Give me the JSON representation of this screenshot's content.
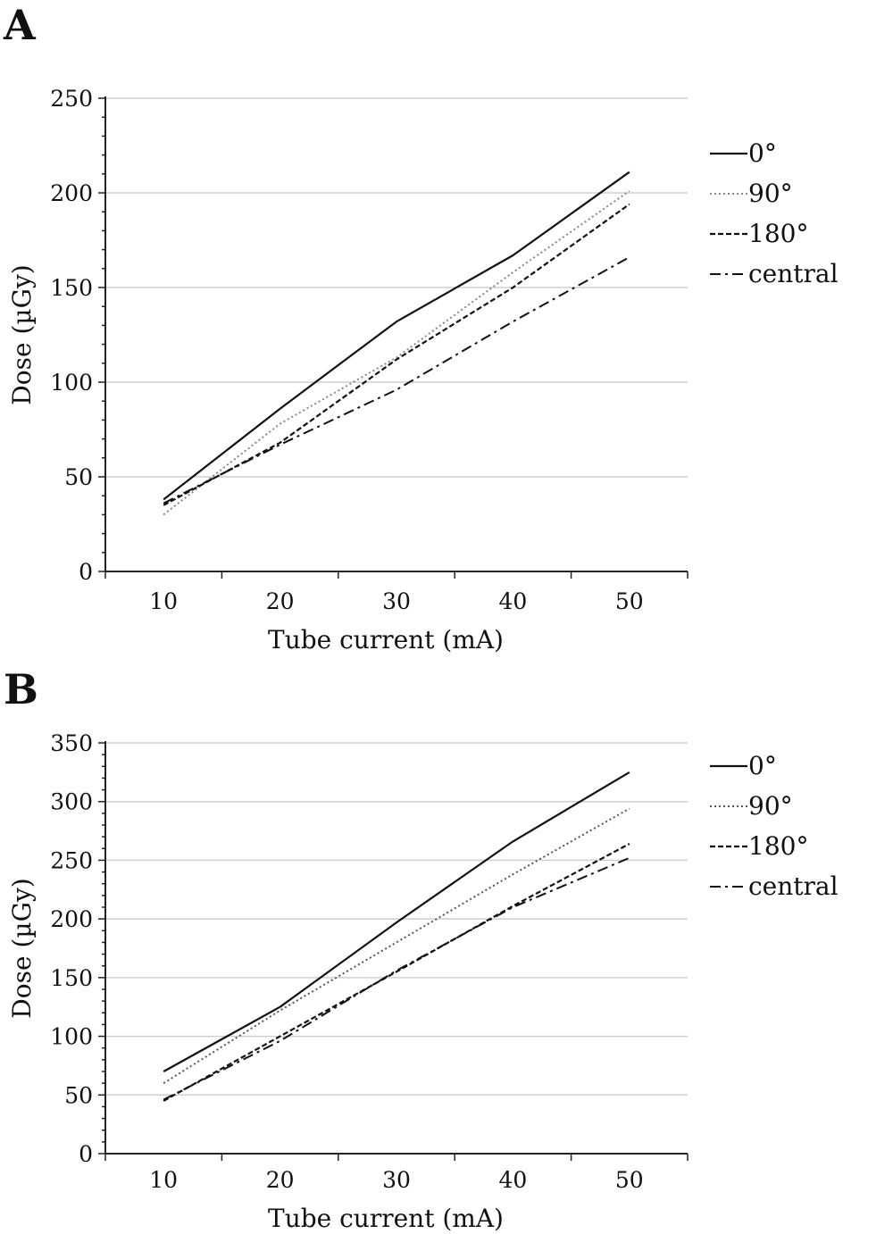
{
  "chart_data": [
    {
      "panel": "A",
      "type": "line",
      "title": "",
      "xlabel": "Tube current (mA)",
      "ylabel": "Dose (µGy)",
      "x": [
        10,
        20,
        30,
        40,
        50
      ],
      "xlim": [
        5,
        55
      ],
      "ylim": [
        0,
        250
      ],
      "yticks": [
        0,
        50,
        100,
        150,
        200,
        250
      ],
      "xticks": [
        10,
        20,
        30,
        40,
        50
      ],
      "grid": true,
      "legend_position": "right",
      "series": [
        {
          "name": "0°",
          "style": "solid",
          "color": "#111111",
          "values": [
            38,
            86,
            132,
            167,
            211
          ]
        },
        {
          "name": "90°",
          "style": "dotted",
          "color": "#888888",
          "values": [
            30,
            78,
            113,
            158,
            201
          ]
        },
        {
          "name": "180°",
          "style": "dashed",
          "color": "#111111",
          "values": [
            35,
            68,
            112,
            150,
            194
          ]
        },
        {
          "name": "central",
          "style": "dashdot",
          "color": "#111111",
          "values": [
            36,
            67,
            96,
            132,
            166
          ]
        }
      ]
    },
    {
      "panel": "B",
      "type": "line",
      "title": "",
      "xlabel": "Tube current (mA)",
      "ylabel": "Dose (µGy)",
      "x": [
        10,
        20,
        30,
        40,
        50
      ],
      "xlim": [
        5,
        55
      ],
      "ylim": [
        0,
        350
      ],
      "yticks": [
        0,
        50,
        100,
        150,
        200,
        250,
        300,
        350
      ],
      "xticks": [
        10,
        20,
        30,
        40,
        50
      ],
      "grid": true,
      "legend_position": "right",
      "series": [
        {
          "name": "0°",
          "style": "solid",
          "color": "#111111",
          "values": [
            70,
            125,
            197,
            266,
            325
          ]
        },
        {
          "name": "90°",
          "style": "dotted",
          "color": "#555555",
          "values": [
            60,
            122,
            180,
            238,
            294
          ]
        },
        {
          "name": "180°",
          "style": "dashed",
          "color": "#111111",
          "values": [
            45,
            100,
            155,
            211,
            264
          ]
        },
        {
          "name": "central",
          "style": "dashdot",
          "color": "#111111",
          "values": [
            46,
            96,
            156,
            210,
            252
          ]
        }
      ]
    }
  ]
}
